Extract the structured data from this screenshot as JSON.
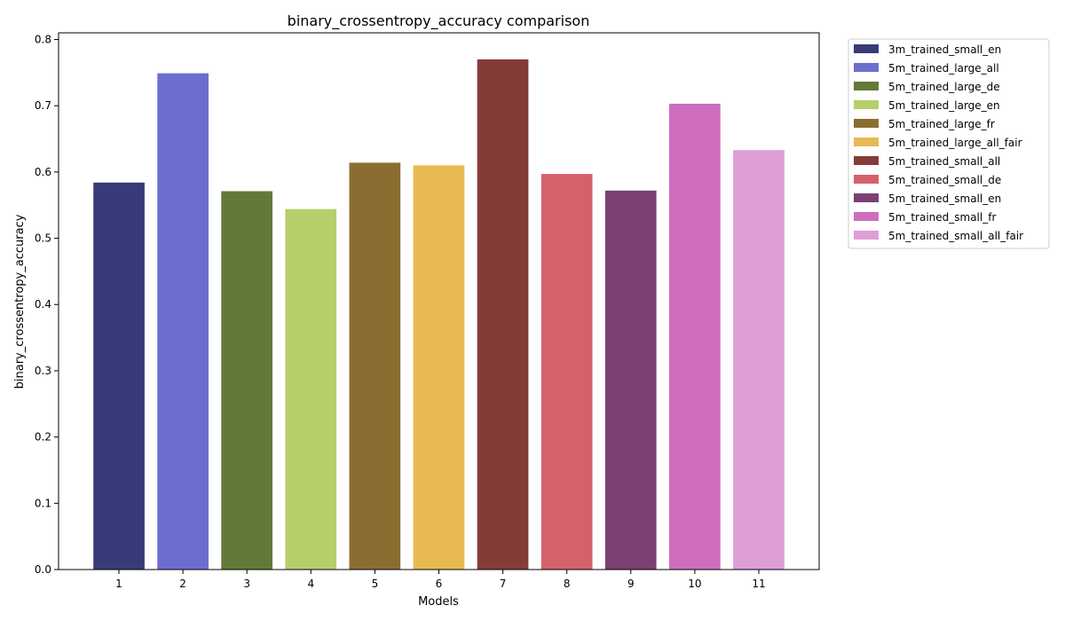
{
  "chart_data": {
    "type": "bar",
    "title": "binary_crossentropy_accuracy comparison",
    "xlabel": "Models",
    "ylabel": "binary_crossentropy_accuracy",
    "ylim": [
      0,
      0.81
    ],
    "yticks": [
      0.0,
      0.1,
      0.2,
      0.3,
      0.4,
      0.5,
      0.6,
      0.7,
      0.8
    ],
    "yticks_text": [
      "0.0",
      "0.1",
      "0.2",
      "0.3",
      "0.4",
      "0.5",
      "0.6",
      "0.7",
      "0.8"
    ],
    "categories": [
      "1",
      "2",
      "3",
      "4",
      "5",
      "6",
      "7",
      "8",
      "9",
      "10",
      "11"
    ],
    "values": [
      0.584,
      0.749,
      0.571,
      0.544,
      0.614,
      0.61,
      0.77,
      0.597,
      0.572,
      0.703,
      0.633
    ],
    "colors": [
      "#393b79",
      "#6b6ecf",
      "#637939",
      "#b5cf6b",
      "#8c6d31",
      "#e7ba52",
      "#843c39",
      "#d6616b",
      "#7b4173",
      "#ce6dbd",
      "#de9ed6"
    ],
    "legend_position": "outside-right-top",
    "grid": false,
    "legend": [
      "3m_trained_small_en",
      "5m_trained_large_all",
      "5m_trained_large_de",
      "5m_trained_large_en",
      "5m_trained_large_fr",
      "5m_trained_large_all_fair",
      "5m_trained_small_all",
      "5m_trained_small_de",
      "5m_trained_small_en",
      "5m_trained_small_fr",
      "5m_trained_small_all_fair"
    ]
  }
}
